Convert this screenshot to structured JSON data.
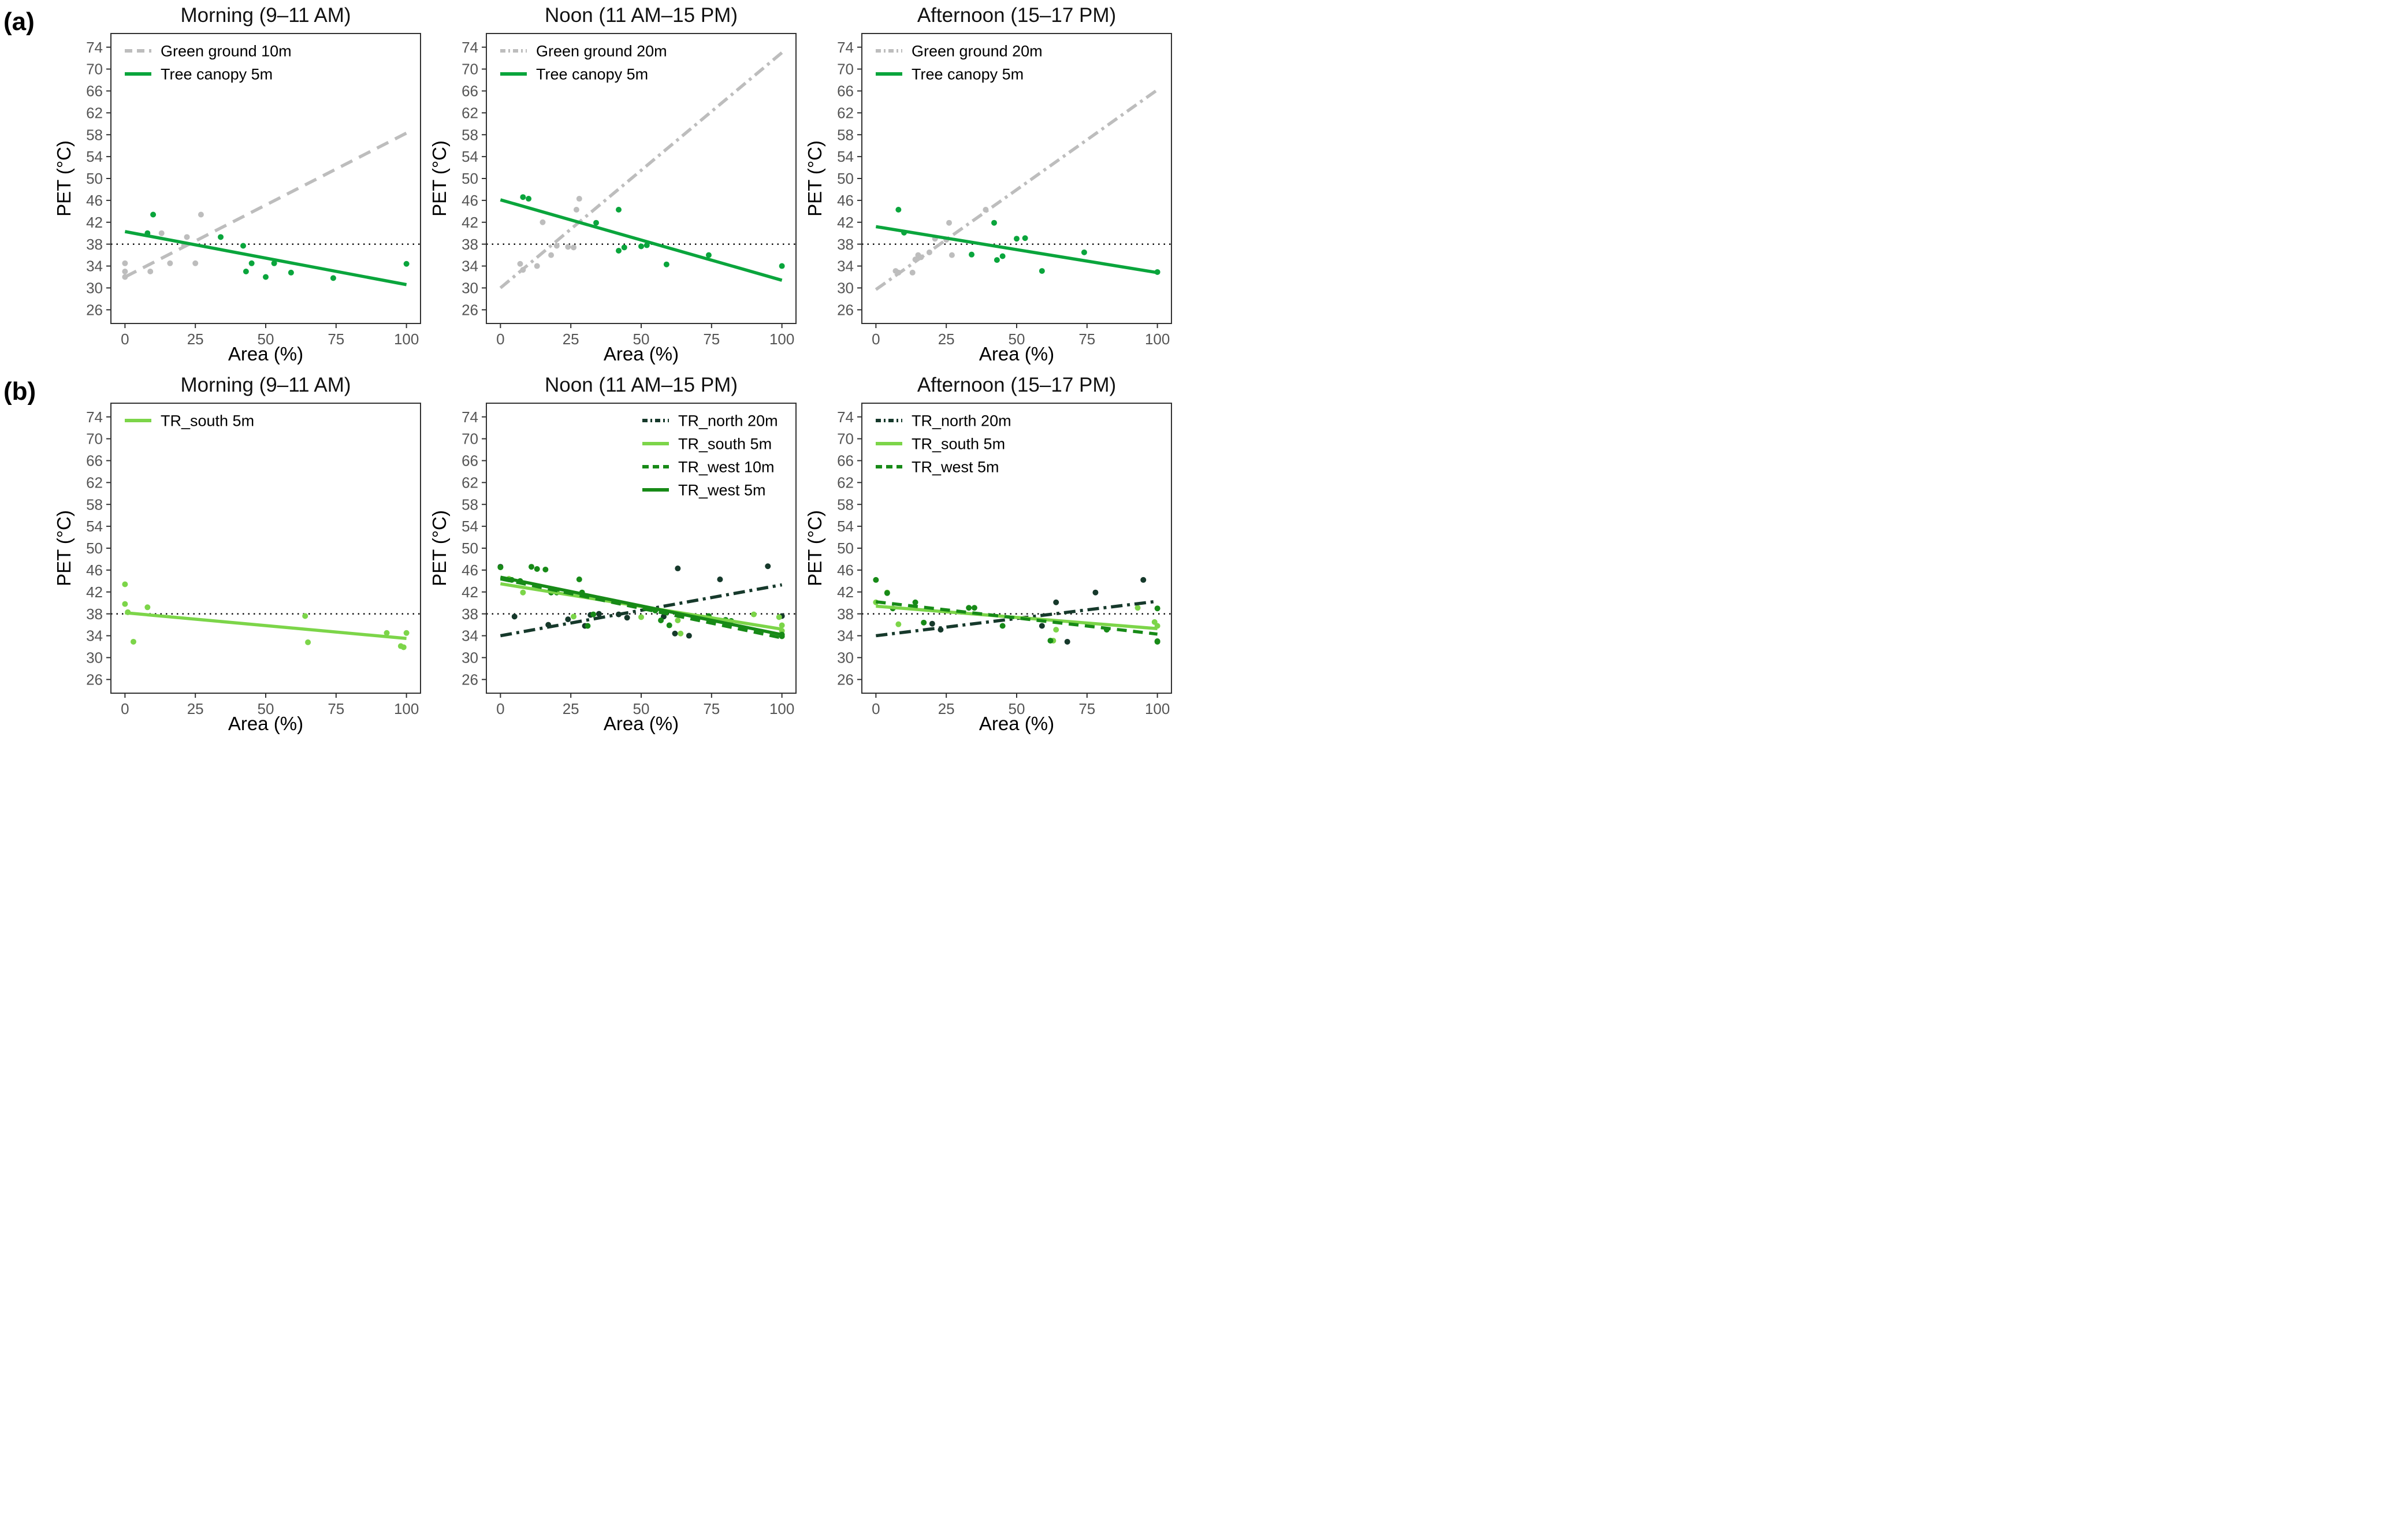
{
  "figure": {
    "row_labels": [
      "(a)",
      "(b)"
    ],
    "y_axis_label": "PET (°C)",
    "x_axis_label": "Area (%)",
    "reference_line_y": 38,
    "colors": {
      "gray": "#BDBDBD",
      "green": "#0AA53C",
      "light_green": "#7CD549",
      "west_green": "#178A17",
      "north_green": "#16392B",
      "reference": "#000000",
      "tick_label": "#555555",
      "title": "#111111",
      "axis_label": "#000000",
      "border": "#333333"
    }
  },
  "chart_data": [
    {
      "id": "a-morning",
      "row": "a",
      "type": "scatter",
      "title": "Morning (9–11 AM)",
      "xlabel": "Area (%)",
      "ylabel": "PET (°C)",
      "xlim": [
        -5,
        105
      ],
      "ylim": [
        23.5,
        76.5
      ],
      "x_ticks": [
        0,
        25,
        50,
        75,
        100
      ],
      "y_ticks": [
        26,
        30,
        34,
        38,
        42,
        46,
        50,
        54,
        58,
        62,
        66,
        70,
        74
      ],
      "reference_line_y": 38,
      "grid": false,
      "legend_position": "top-left",
      "series": [
        {
          "name": "Green ground 10m",
          "color": "gray",
          "style": "longdash",
          "trend": [
            [
              0,
              32.0
            ],
            [
              100,
              58.3
            ]
          ],
          "points": [
            [
              0,
              34.5
            ],
            [
              0,
              33
            ],
            [
              0,
              32
            ],
            [
              9,
              33
            ],
            [
              13,
              40
            ],
            [
              16,
              34.5
            ],
            [
              21,
              37.8
            ],
            [
              22,
              39.3
            ],
            [
              25,
              34.5
            ],
            [
              27,
              43.4
            ]
          ]
        },
        {
          "name": "Tree canopy 5m",
          "color": "green",
          "style": "solid",
          "trend": [
            [
              0,
              40.3
            ],
            [
              100,
              30.6
            ]
          ],
          "points": [
            [
              8,
              40
            ],
            [
              10,
              43.4
            ],
            [
              34,
              39.3
            ],
            [
              42,
              37.7
            ],
            [
              43,
              33
            ],
            [
              45,
              34.5
            ],
            [
              50,
              32
            ],
            [
              53,
              34.5
            ],
            [
              59,
              32.8
            ],
            [
              74,
              31.8
            ],
            [
              100,
              34.4
            ]
          ]
        }
      ]
    },
    {
      "id": "a-noon",
      "row": "a",
      "type": "scatter",
      "title": "Noon (11 AM–15 PM)",
      "xlabel": "Area (%)",
      "ylabel": "PET (°C)",
      "xlim": [
        -5,
        105
      ],
      "ylim": [
        23.5,
        76.5
      ],
      "x_ticks": [
        0,
        25,
        50,
        75,
        100
      ],
      "y_ticks": [
        26,
        30,
        34,
        38,
        42,
        46,
        50,
        54,
        58,
        62,
        66,
        70,
        74
      ],
      "reference_line_y": 38,
      "grid": false,
      "legend_position": "top-left",
      "series": [
        {
          "name": "Green ground 20m",
          "color": "gray",
          "style": "dashdot",
          "trend": [
            [
              0,
              30.0
            ],
            [
              100,
              73.0
            ]
          ],
          "points": [
            [
              7,
              34.4
            ],
            [
              8,
              33.3
            ],
            [
              13,
              34
            ],
            [
              15,
              42
            ],
            [
              18,
              36
            ],
            [
              20,
              37.7
            ],
            [
              24,
              37.5
            ],
            [
              26,
              37.4
            ],
            [
              27,
              44.3
            ],
            [
              28,
              46.3
            ]
          ]
        },
        {
          "name": "Tree canopy 5m",
          "color": "green",
          "style": "solid",
          "trend": [
            [
              0,
              46.1
            ],
            [
              100,
              31.4
            ]
          ],
          "points": [
            [
              8,
              46.6
            ],
            [
              10,
              46.3
            ],
            [
              34,
              41.9
            ],
            [
              42,
              44.3
            ],
            [
              42,
              36.8
            ],
            [
              44,
              37.4
            ],
            [
              50,
              37.6
            ],
            [
              52,
              37.8
            ],
            [
              59,
              34.3
            ],
            [
              74,
              36
            ],
            [
              100,
              34
            ]
          ]
        }
      ]
    },
    {
      "id": "a-afternoon",
      "row": "a",
      "type": "scatter",
      "title": "Afternoon (15–17 PM)",
      "xlabel": "Area (%)",
      "ylabel": "PET (°C)",
      "xlim": [
        -5,
        105
      ],
      "ylim": [
        23.5,
        76.5
      ],
      "x_ticks": [
        0,
        25,
        50,
        75,
        100
      ],
      "y_ticks": [
        26,
        30,
        34,
        38,
        42,
        46,
        50,
        54,
        58,
        62,
        66,
        70,
        74
      ],
      "reference_line_y": 38,
      "grid": false,
      "legend_position": "top-left",
      "series": [
        {
          "name": "Green ground 20m",
          "color": "gray",
          "style": "dashdot",
          "trend": [
            [
              0,
              29.7
            ],
            [
              100,
              66.2
            ]
          ],
          "points": [
            [
              7,
              33.1
            ],
            [
              8,
              32.8
            ],
            [
              13,
              32.8
            ],
            [
              14,
              35.2
            ],
            [
              15,
              36
            ],
            [
              16,
              35.6
            ],
            [
              19,
              36.5
            ],
            [
              21,
              39
            ],
            [
              25,
              38.8
            ],
            [
              26,
              41.9
            ],
            [
              27,
              36
            ],
            [
              39,
              44.3
            ]
          ]
        },
        {
          "name": "Tree canopy 5m",
          "color": "green",
          "style": "solid",
          "trend": [
            [
              0,
              41.2
            ],
            [
              100,
              32.8
            ]
          ],
          "points": [
            [
              8,
              44.3
            ],
            [
              10,
              40.1
            ],
            [
              34,
              36.1
            ],
            [
              42,
              41.9
            ],
            [
              43,
              35.1
            ],
            [
              45,
              35.8
            ],
            [
              50,
              39
            ],
            [
              53,
              39.1
            ],
            [
              59,
              33.1
            ],
            [
              74,
              36.5
            ],
            [
              100,
              32.9
            ]
          ]
        }
      ]
    },
    {
      "id": "b-morning",
      "row": "b",
      "type": "scatter",
      "title": "Morning (9–11 AM)",
      "xlabel": "Area (%)",
      "ylabel": "PET (°C)",
      "xlim": [
        -5,
        105
      ],
      "ylim": [
        23.5,
        76.5
      ],
      "x_ticks": [
        0,
        25,
        50,
        75,
        100
      ],
      "y_ticks": [
        26,
        30,
        34,
        38,
        42,
        46,
        50,
        54,
        58,
        62,
        66,
        70,
        74
      ],
      "reference_line_y": 38,
      "grid": false,
      "legend_position": "top-left",
      "series": [
        {
          "name": "TR_south 5m",
          "color": "light_green",
          "style": "solid",
          "trend": [
            [
              0,
              38.2
            ],
            [
              100,
              33.5
            ]
          ],
          "points": [
            [
              0,
              43.4
            ],
            [
              0,
              39.8
            ],
            [
              1,
              38.3
            ],
            [
              3,
              32.9
            ],
            [
              8,
              39.2
            ],
            [
              64,
              37.6
            ],
            [
              65,
              32.8
            ],
            [
              93,
              34.5
            ],
            [
              98,
              32.1
            ],
            [
              99,
              31.9
            ],
            [
              100,
              34.5
            ]
          ]
        }
      ]
    },
    {
      "id": "b-noon",
      "row": "b",
      "type": "scatter",
      "title": "Noon (11 AM–15 PM)",
      "xlabel": "Area (%)",
      "ylabel": "PET (°C)",
      "xlim": [
        -5,
        105
      ],
      "ylim": [
        23.5,
        76.5
      ],
      "x_ticks": [
        0,
        25,
        50,
        75,
        100
      ],
      "y_ticks": [
        26,
        30,
        34,
        38,
        42,
        46,
        50,
        54,
        58,
        62,
        66,
        70,
        74
      ],
      "reference_line_y": 38,
      "grid": false,
      "legend_position": "top-right",
      "series": [
        {
          "name": "TR_north 20m",
          "color": "north_green",
          "style": "dashdot",
          "trend": [
            [
              0,
              34.0
            ],
            [
              100,
              43.3
            ]
          ],
          "points": [
            [
              0,
              46.6
            ],
            [
              5,
              37.5
            ],
            [
              17,
              36
            ],
            [
              24,
              37
            ],
            [
              30,
              35.8
            ],
            [
              32,
              37.8
            ],
            [
              35,
              38
            ],
            [
              42,
              37.9
            ],
            [
              45,
              37.3
            ],
            [
              58,
              37.5
            ],
            [
              62,
              34.4
            ],
            [
              63,
              46.3
            ],
            [
              67,
              34
            ],
            [
              78,
              44.3
            ],
            [
              95,
              46.7
            ],
            [
              100,
              37.6
            ]
          ]
        },
        {
          "name": "TR_south 5m",
          "color": "light_green",
          "style": "solid",
          "trend": [
            [
              0,
              43.5
            ],
            [
              100,
              35.2
            ]
          ],
          "points": [
            [
              3,
              44.4
            ],
            [
              8,
              41.9
            ],
            [
              20,
              42.1
            ],
            [
              26,
              37.5
            ],
            [
              50,
              37.4
            ],
            [
              63,
              36.8
            ],
            [
              64,
              34.4
            ],
            [
              90,
              37.9
            ],
            [
              99,
              37.4
            ],
            [
              100,
              35.9
            ],
            [
              100,
              34.9
            ]
          ]
        },
        {
          "name": "TR_west 10m",
          "color": "west_green",
          "style": "dashed",
          "trend": [
            [
              0,
              44.4
            ],
            [
              100,
              33.6
            ]
          ],
          "points": [
            [
              4,
              44.2
            ],
            [
              13,
              46.2
            ],
            [
              18,
              41.9
            ],
            [
              28,
              44.3
            ],
            [
              31,
              35.8
            ],
            [
              57,
              36.8
            ],
            [
              74,
              37.6
            ],
            [
              80,
              36.9
            ],
            [
              100,
              33.9
            ]
          ]
        },
        {
          "name": "TR_west 5m",
          "color": "west_green",
          "style": "solid",
          "trend": [
            [
              0,
              44.7
            ],
            [
              100,
              34.2
            ]
          ],
          "points": [
            [
              0,
              46.5
            ],
            [
              7,
              44
            ],
            [
              11,
              46.6
            ],
            [
              16,
              46.1
            ],
            [
              20,
              41.9
            ],
            [
              29,
              41.9
            ],
            [
              33,
              37.9
            ],
            [
              55,
              38.6
            ],
            [
              60,
              35.9
            ],
            [
              82,
              36.7
            ],
            [
              100,
              34.2
            ]
          ]
        }
      ]
    },
    {
      "id": "b-afternoon",
      "row": "b",
      "type": "scatter",
      "title": "Afternoon (15–17 PM)",
      "xlabel": "Area (%)",
      "ylabel": "PET (°C)",
      "xlim": [
        -5,
        105
      ],
      "ylim": [
        23.5,
        76.5
      ],
      "x_ticks": [
        0,
        25,
        50,
        75,
        100
      ],
      "y_ticks": [
        26,
        30,
        34,
        38,
        42,
        46,
        50,
        54,
        58,
        62,
        66,
        70,
        74
      ],
      "reference_line_y": 38,
      "grid": false,
      "legend_position": "top-left",
      "series": [
        {
          "name": "TR_north 20m",
          "color": "north_green",
          "style": "dashdot",
          "trend": [
            [
              0,
              34.0
            ],
            [
              100,
              40.3
            ]
          ],
          "points": [
            [
              20,
              36.2
            ],
            [
              23,
              35.1
            ],
            [
              59,
              35.8
            ],
            [
              64,
              40.1
            ],
            [
              68,
              32.9
            ],
            [
              78,
              41.9
            ],
            [
              95,
              44.2
            ]
          ]
        },
        {
          "name": "TR_south 5m",
          "color": "light_green",
          "style": "solid",
          "trend": [
            [
              0,
              39.4
            ],
            [
              100,
              35.3
            ]
          ],
          "points": [
            [
              0,
              40.1
            ],
            [
              4,
              41.9
            ],
            [
              8,
              36.1
            ],
            [
              63,
              33.1
            ],
            [
              64,
              35.1
            ],
            [
              93,
              39.1
            ],
            [
              99,
              36.5
            ],
            [
              100,
              35.8
            ]
          ]
        },
        {
          "name": "TR_west 5m",
          "color": "west_green",
          "style": "dashed",
          "trend": [
            [
              0,
              40.2
            ],
            [
              100,
              34.3
            ]
          ],
          "points": [
            [
              0,
              44.2
            ],
            [
              4,
              41.8
            ],
            [
              6,
              39
            ],
            [
              14,
              40.1
            ],
            [
              17,
              36.4
            ],
            [
              33,
              39.1
            ],
            [
              35,
              39.1
            ],
            [
              45,
              35.8
            ],
            [
              62,
              33.1
            ],
            [
              82,
              35.1
            ],
            [
              100,
              39
            ],
            [
              100,
              33
            ],
            [
              100,
              32.9
            ]
          ]
        }
      ]
    }
  ]
}
